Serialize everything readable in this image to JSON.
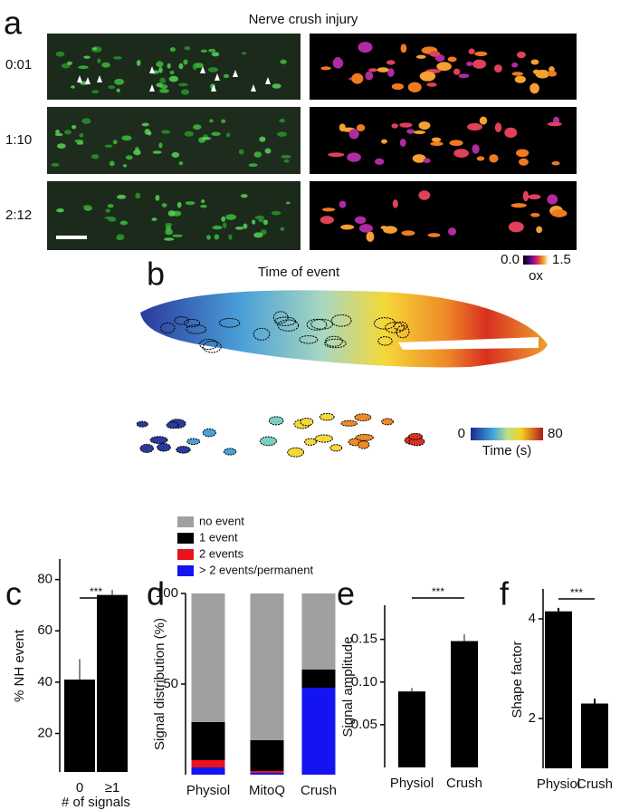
{
  "figure": {
    "panel_labels": [
      "a",
      "b",
      "c",
      "d",
      "e",
      "f"
    ],
    "a_title": "Nerve crush injury",
    "timepoints": [
      "0:01",
      "1:10",
      "2:12"
    ],
    "a_colorbar": {
      "min": "0.0",
      "max": "1.5",
      "label": "ox"
    },
    "b_title": "Time of event",
    "b_colorbar": {
      "min": "0",
      "max": "80",
      "label": "Time (s)"
    }
  },
  "chart_data": [
    {
      "type": "bar",
      "ylabel": "% NH event",
      "xlabel": "# of signals",
      "categories": [
        "0",
        "≥1"
      ],
      "values": [
        41,
        74
      ],
      "errors": [
        8,
        2
      ],
      "color": "#000000",
      "error_color": "#888888",
      "ylim": [
        5,
        88
      ],
      "yticks": [
        20,
        40,
        60,
        80
      ],
      "annotation": "***"
    },
    {
      "type": "bar",
      "stacked": true,
      "ylabel": "Signal distribution (%)",
      "categories": [
        "Physiol",
        "MitoQ",
        "Crush"
      ],
      "series": [
        {
          "name": "no event",
          "color": "#a0a0a2",
          "values": [
            71,
            81,
            42
          ]
        },
        {
          "name": "1 event",
          "color": "#000000",
          "values": [
            21,
            17,
            10
          ]
        },
        {
          "name": "2 events",
          "color": "#e8141b",
          "values": [
            4,
            1,
            0
          ]
        },
        {
          "name": "> 2 events/permanent",
          "color": "#1414f0",
          "values": [
            4,
            1,
            48
          ]
        }
      ],
      "ylim": [
        0,
        100
      ],
      "yticks": [
        50,
        100
      ]
    },
    {
      "type": "bar",
      "ylabel": "Signal amplitude",
      "categories": [
        "Physiol",
        "Crush"
      ],
      "values": [
        0.089,
        0.148
      ],
      "errors": [
        0.004,
        0.008
      ],
      "color": "#000000",
      "error_color": "#888888",
      "ylim": [
        0,
        0.19
      ],
      "yticks": [
        0.05,
        {
          "value": 0.1,
          "label": "0.10"
        },
        0.15
      ],
      "annotation": "***"
    },
    {
      "type": "bar",
      "ylabel": "Shape factor",
      "categories": [
        "Physiol",
        "Crush"
      ],
      "values": [
        4.15,
        2.3
      ],
      "errors": [
        0.07,
        0.1
      ],
      "color": "#000000",
      "error_color": "#000000",
      "ylim": [
        1,
        4.6
      ],
      "yticks": [
        2,
        4
      ],
      "annotation": "***"
    }
  ]
}
